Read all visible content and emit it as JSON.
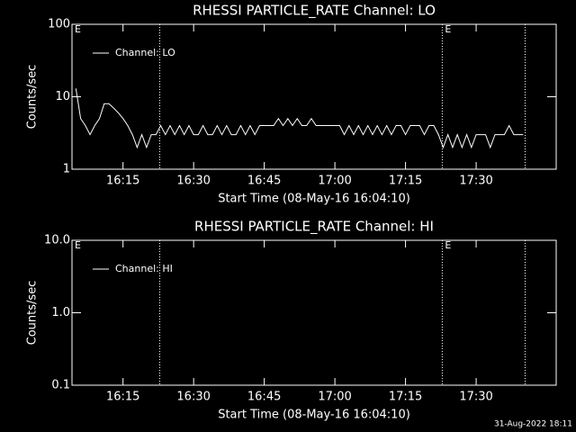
{
  "chart_data": [
    {
      "type": "line",
      "title": "RHESSI PARTICLE_RATE Channel: LO",
      "xlabel": "Start Time (08-May-16 16:04:10)",
      "ylabel": "Counts/sec",
      "x": [
        965,
        966,
        967,
        968,
        969,
        970,
        971,
        972,
        973,
        974,
        975,
        976,
        977,
        978,
        979,
        980,
        981,
        982,
        983,
        984,
        985,
        986,
        987,
        988,
        989,
        990,
        991,
        992,
        993,
        994,
        995,
        996,
        997,
        998,
        999,
        1000,
        1001,
        1002,
        1003,
        1004,
        1005,
        1006,
        1007,
        1008,
        1009,
        1010,
        1011,
        1012,
        1013,
        1014,
        1015,
        1016,
        1017,
        1018,
        1019,
        1020,
        1021,
        1022,
        1023,
        1024,
        1025,
        1026,
        1027,
        1028,
        1029,
        1030,
        1031,
        1032,
        1033,
        1034,
        1035,
        1036,
        1037,
        1038,
        1039,
        1040,
        1041,
        1042,
        1043,
        1044,
        1045,
        1046,
        1047,
        1048,
        1049,
        1050,
        1051,
        1052,
        1053,
        1054,
        1055,
        1056,
        1057,
        1058,
        1059,
        1060
      ],
      "series": [
        {
          "name": "Channel: LO",
          "color": "#ffffff",
          "values": [
            13,
            5,
            4,
            3,
            4,
            5,
            8,
            8,
            7,
            6,
            5,
            4,
            3,
            2,
            3,
            2,
            3,
            3,
            4,
            3,
            4,
            3,
            4,
            3,
            4,
            3,
            3,
            4,
            3,
            3,
            4,
            3,
            4,
            3,
            3,
            4,
            3,
            4,
            3,
            4,
            4,
            4,
            4,
            5,
            4,
            5,
            4,
            5,
            4,
            4,
            5,
            4,
            4,
            4,
            4,
            4,
            4,
            3,
            4,
            3,
            4,
            3,
            4,
            3,
            4,
            3,
            4,
            3,
            4,
            4,
            3,
            4,
            4,
            4,
            3,
            4,
            4,
            3,
            2,
            3,
            2,
            3,
            2,
            3,
            2,
            3,
            3,
            3,
            2,
            3,
            3,
            3,
            4,
            3,
            3,
            3
          ]
        }
      ],
      "xlim": [
        964.1667,
        1067
      ],
      "xticks": [
        {
          "value": 975,
          "label": "16:15"
        },
        {
          "value": 990,
          "label": "16:30"
        },
        {
          "value": 1005,
          "label": "16:45"
        },
        {
          "value": 1020,
          "label": "17:00"
        },
        {
          "value": 1035,
          "label": "17:15"
        },
        {
          "value": 1050,
          "label": "17:30"
        }
      ],
      "ylim": [
        1,
        100
      ],
      "yticks": [
        1,
        10,
        100
      ],
      "log_y": true,
      "vlines": [
        982.8,
        1042.8,
        1060.4
      ],
      "markers": [
        {
          "label": "E",
          "x": 964.1667
        },
        {
          "label": "E",
          "x": 1042.8
        }
      ]
    },
    {
      "type": "line",
      "title": "RHESSI PARTICLE_RATE Channel: HI",
      "xlabel": "Start Time (08-May-16 16:04:10)",
      "ylabel": "Counts/sec",
      "x": [],
      "series": [
        {
          "name": "Channel: HI",
          "color": "#ffffff",
          "values": []
        }
      ],
      "xlim": [
        964.1667,
        1067
      ],
      "xticks": [
        {
          "value": 975,
          "label": "16:15"
        },
        {
          "value": 990,
          "label": "16:30"
        },
        {
          "value": 1005,
          "label": "16:45"
        },
        {
          "value": 1020,
          "label": "17:00"
        },
        {
          "value": 1035,
          "label": "17:15"
        },
        {
          "value": 1050,
          "label": "17:30"
        }
      ],
      "ylim": [
        0.1,
        10
      ],
      "yticks": [
        {
          "value": 0.1,
          "label": "0.1"
        },
        {
          "value": 1,
          "label": "1.0"
        },
        {
          "value": 10,
          "label": "10.0"
        }
      ],
      "log_y": true,
      "vlines": [
        982.8,
        1042.8,
        1060.4
      ],
      "markers": [
        {
          "label": "E",
          "x": 964.1667
        },
        {
          "label": "E",
          "x": 1042.8
        }
      ]
    }
  ],
  "footer": "31-Aug-2022 18:11"
}
